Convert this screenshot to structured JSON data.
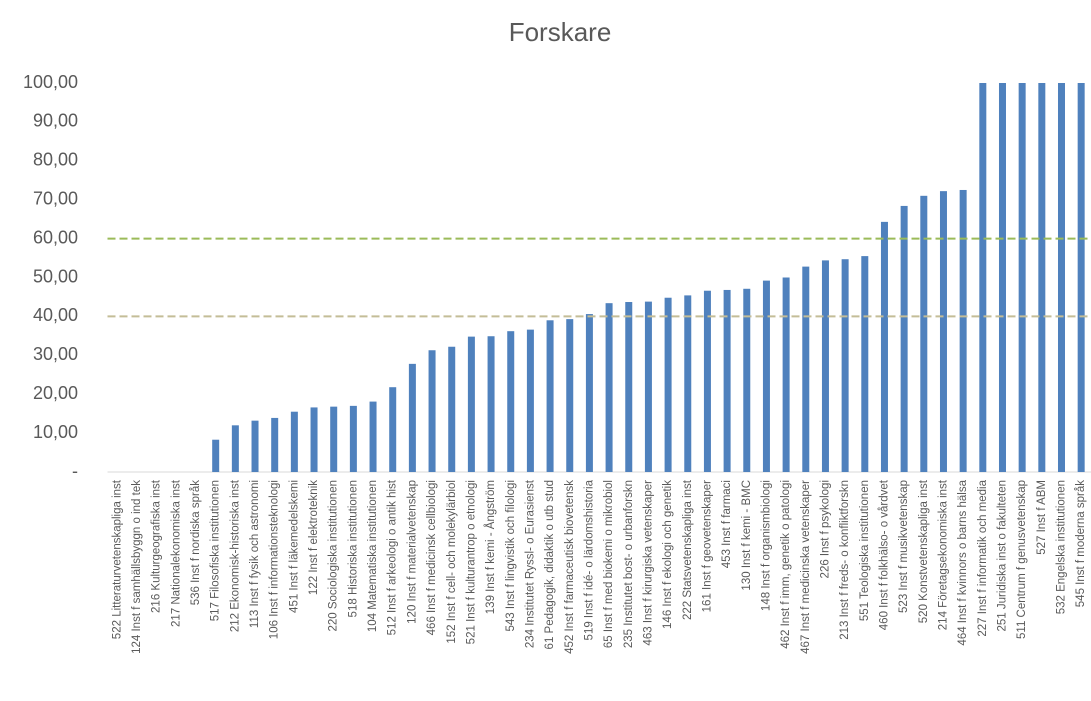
{
  "chart_data": {
    "type": "bar",
    "title": "Forskare",
    "categories": [
      "522 Litteraturvetenskapliga inst",
      "124 Inst f samhällsbyggn o ind tek",
      "216 Kulturgeografiska inst",
      "217 Nationalekonomiska inst",
      "536 Inst f nordiska språk",
      "517 Filosofiska institutionen",
      "212 Ekonomisk-historiska inst",
      "113 Inst f fysik och astronomi",
      "106 Inst f informationsteknologi",
      "451 Inst f läkemedelskemi",
      "122 Inst f elektroteknik",
      "220 Sociologiska institutionen",
      "518 Historiska institutionen",
      "104 Matematiska institutionen",
      "512 Inst f arkeologi o antik hist",
      "120 Inst f materialvetenskap",
      "466 Inst f medicinsk cellbiologi",
      "152 Inst f cell- och molekylärbiol",
      "521 Inst f kulturantrop o etnologi",
      "139 Inst f kemi - Ångström",
      "543 Inst f lingvistik och filologi",
      "234 Institutet Ryssl- o Eurasienst",
      "61 Pedagogik, didaktik o utb stud",
      "452 Inst f farmaceutisk biovetensk",
      "519 Inst f idé- o lärdomshistoria",
      "65 Inst f med biokemi o mikrobiol",
      "235 Institutet bost- o urbanforskn",
      "463 Inst f kirurgiska vetenskaper",
      "146 Inst f ekologi och genetik",
      "222 Statsvetenskapliga inst",
      "161 Inst f geovetenskaper",
      "453 Inst f farmaci",
      "130 Inst f kemi - BMC",
      "148 Inst f organismbiologi",
      "462 Inst f imm, genetik o patologi",
      "467 Inst f medicinska vetenskaper",
      "226 Inst f psykologi",
      "213 Inst f freds- o konfliktforskn",
      "551 Teologiska institutionen",
      "460 Inst f folkhälso- o vårdvet",
      "523 Inst f musikvetenskap",
      "520 Konstvetenskapliga inst",
      "214 Företagsekonomiska inst",
      "464 Inst f kvinnors o barns hälsa",
      "227 Inst f informatik och media",
      "251 Juridiska inst o fakulteten",
      "511 Centrum f genusvetenskap",
      "527 Inst f ABM",
      "532 Engelska institutionen",
      "545 Inst f moderna språk"
    ],
    "values": [
      0,
      0,
      0,
      0,
      0,
      8.3,
      12,
      13.2,
      13.9,
      15.5,
      16.6,
      16.8,
      17,
      18.1,
      21.8,
      27.8,
      31.3,
      32.2,
      34.8,
      34.9,
      36.2,
      36.6,
      39,
      39.3,
      40.6,
      43.4,
      43.7,
      43.8,
      44.8,
      45.4,
      46.6,
      46.8,
      47.1,
      49.2,
      50,
      52.8,
      54.4,
      54.7,
      55.5,
      64.3,
      68.4,
      71,
      72.2,
      72.5,
      100,
      100,
      100,
      100,
      100,
      100
    ],
    "color": "#4f81bd",
    "ylim": [
      0,
      100
    ],
    "yticks": [
      {
        "value": 0,
        "label": "-"
      },
      {
        "value": 10,
        "label": "10,00"
      },
      {
        "value": 20,
        "label": "20,00"
      },
      {
        "value": 30,
        "label": "30,00"
      },
      {
        "value": 40,
        "label": "40,00"
      },
      {
        "value": 50,
        "label": "50,00"
      },
      {
        "value": 60,
        "label": "60,00"
      },
      {
        "value": 70,
        "label": "70,00"
      },
      {
        "value": 80,
        "label": "80,00"
      },
      {
        "value": 90,
        "label": "90,00"
      },
      {
        "value": 100,
        "label": "100,00"
      }
    ],
    "reference_lines": [
      {
        "value": 60,
        "color": "#9bbb59"
      },
      {
        "value": 40,
        "color": "#c4bd97"
      }
    ]
  }
}
